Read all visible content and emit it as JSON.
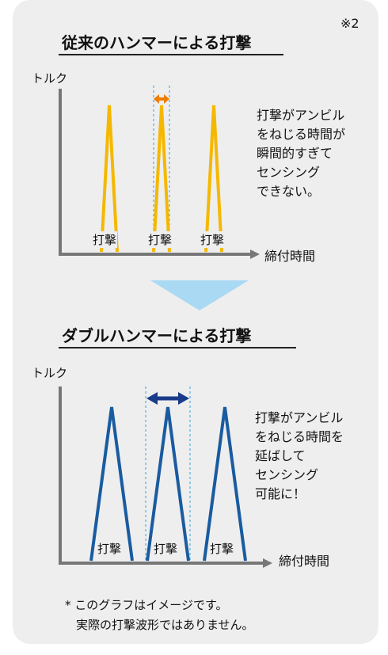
{
  "note_ref": "※2",
  "chart_data": [
    {
      "type": "line",
      "title": "従来のハンマーによる打撃",
      "ylabel": "トルク",
      "xlabel": "締付時間",
      "peak_label": "打撃",
      "peak_count": 3,
      "description": [
        "打撃がアンビル",
        "をねじる時間が",
        "瞬間的すぎて",
        "センシング",
        "できない。"
      ],
      "colors": {
        "series": "#f5b800",
        "span_arrow": "#ef7d00",
        "guide": "#4ab2e6"
      }
    },
    {
      "type": "line",
      "title": "ダブルハンマーによる打撃",
      "ylabel": "トルク",
      "xlabel": "締付時間",
      "peak_label": "打撃",
      "peak_count": 3,
      "description": [
        "打撃がアンビル",
        "をねじる時間を",
        "延ばして",
        "センシング",
        "可能に！"
      ],
      "colors": {
        "series": "#1a5ba0",
        "span_arrow": "#1a3a8a",
        "guide": "#4ab2e6"
      }
    }
  ],
  "transition_arrow_color": "#a9d9f3",
  "axis_color": "#777777",
  "footnote": [
    "* このグラフはイメージです。",
    "実際の打撃波形ではありません。"
  ]
}
